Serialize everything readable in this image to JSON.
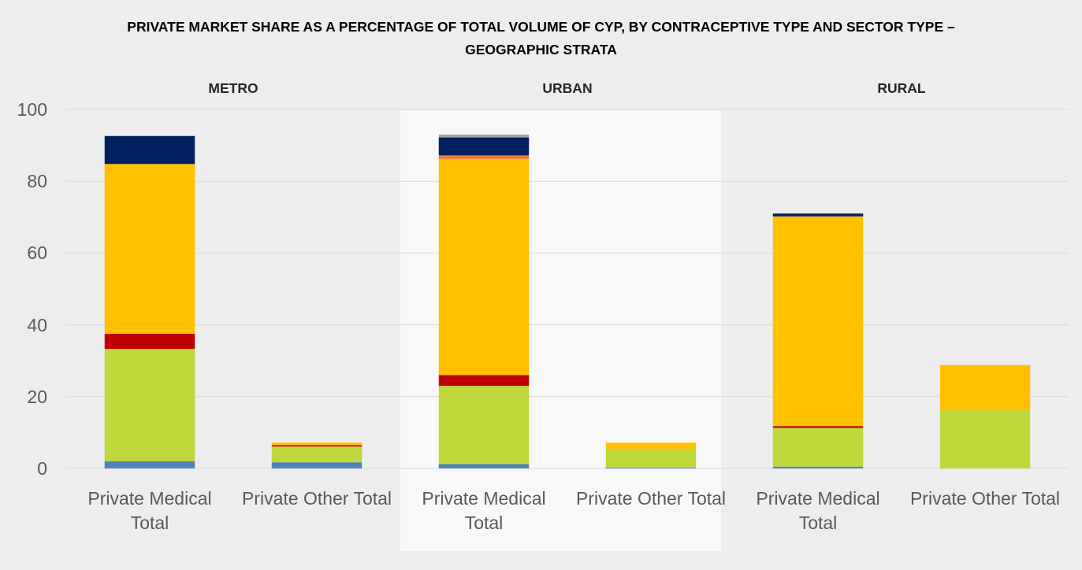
{
  "chart_data": {
    "type": "stacked_bar",
    "title": "PRIVATE MARKET SHARE AS A PERCENTAGE OF TOTAL VOLUME OF CYP, BY CONTRACEPTIVE TYPE AND SECTOR TYPE – GEOGRAPHIC STRATA",
    "groups": [
      "METRO",
      "URBAN",
      "RURAL"
    ],
    "categories": [
      "Private Medical Total",
      "Private Other Total",
      "Private Medical Total",
      "Private Other Total",
      "Private Medical Total",
      "Private Other Total"
    ],
    "series": [
      {
        "color": "#4f81bd",
        "values": [
          2,
          1.7,
          1.2,
          0.2,
          0.5,
          0
        ]
      },
      {
        "color": "#bed73a",
        "values": [
          31.3,
          4.4,
          21.8,
          5.3,
          10.8,
          16.2
        ]
      },
      {
        "color": "#c00000",
        "values": [
          4.2,
          0.4,
          3,
          0,
          0.5,
          0
        ]
      },
      {
        "color": "#ffc000",
        "values": [
          47.3,
          0.7,
          60.2,
          1.7,
          58.4,
          12.6
        ]
      },
      {
        "color": "#ed7d31",
        "values": [
          0,
          0,
          1,
          0,
          0,
          0
        ]
      },
      {
        "color": "#002060",
        "values": [
          7.8,
          0,
          5,
          0,
          0.8,
          0
        ]
      },
      {
        "color": "#a5a5a5",
        "values": [
          0,
          0,
          0.8,
          0,
          0,
          0
        ]
      }
    ],
    "ylim": [
      0,
      100
    ],
    "yticks": [
      0,
      20,
      40,
      60,
      80,
      100
    ],
    "grid": true
  }
}
